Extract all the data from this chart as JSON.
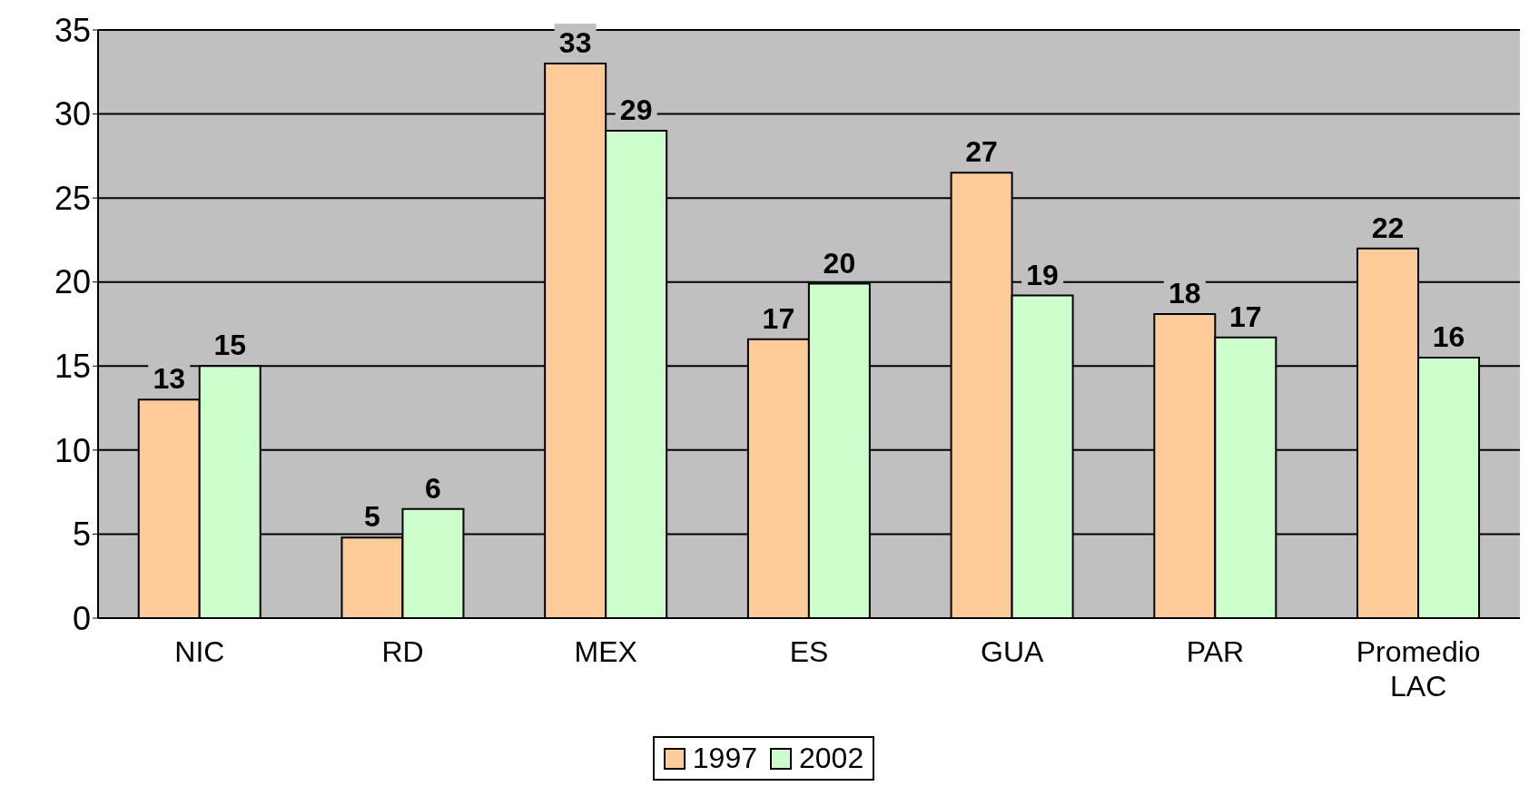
{
  "chart_data": {
    "type": "bar",
    "categories": [
      "NIC",
      "RD",
      "MEX",
      "ES",
      "GUA",
      "PAR",
      "Promedio LAC"
    ],
    "series": [
      {
        "name": "1997",
        "color": "#ffcc99",
        "values": [
          13.0,
          4.8,
          33.0,
          16.6,
          26.5,
          18.1,
          22.0
        ],
        "value_labels": [
          "13",
          "5",
          "33",
          "17",
          "27",
          "18",
          "22"
        ]
      },
      {
        "name": "2002",
        "color": "#ccffcc",
        "values": [
          15.0,
          6.5,
          29.0,
          19.9,
          19.2,
          16.7,
          15.5
        ],
        "value_labels": [
          "15",
          "6",
          "29",
          "20",
          "19",
          "17",
          "16"
        ]
      }
    ],
    "ylim": [
      0,
      35
    ],
    "yticks": [
      0,
      5,
      10,
      15,
      20,
      25,
      30,
      35
    ],
    "grid": "y",
    "legend": "bottom"
  }
}
